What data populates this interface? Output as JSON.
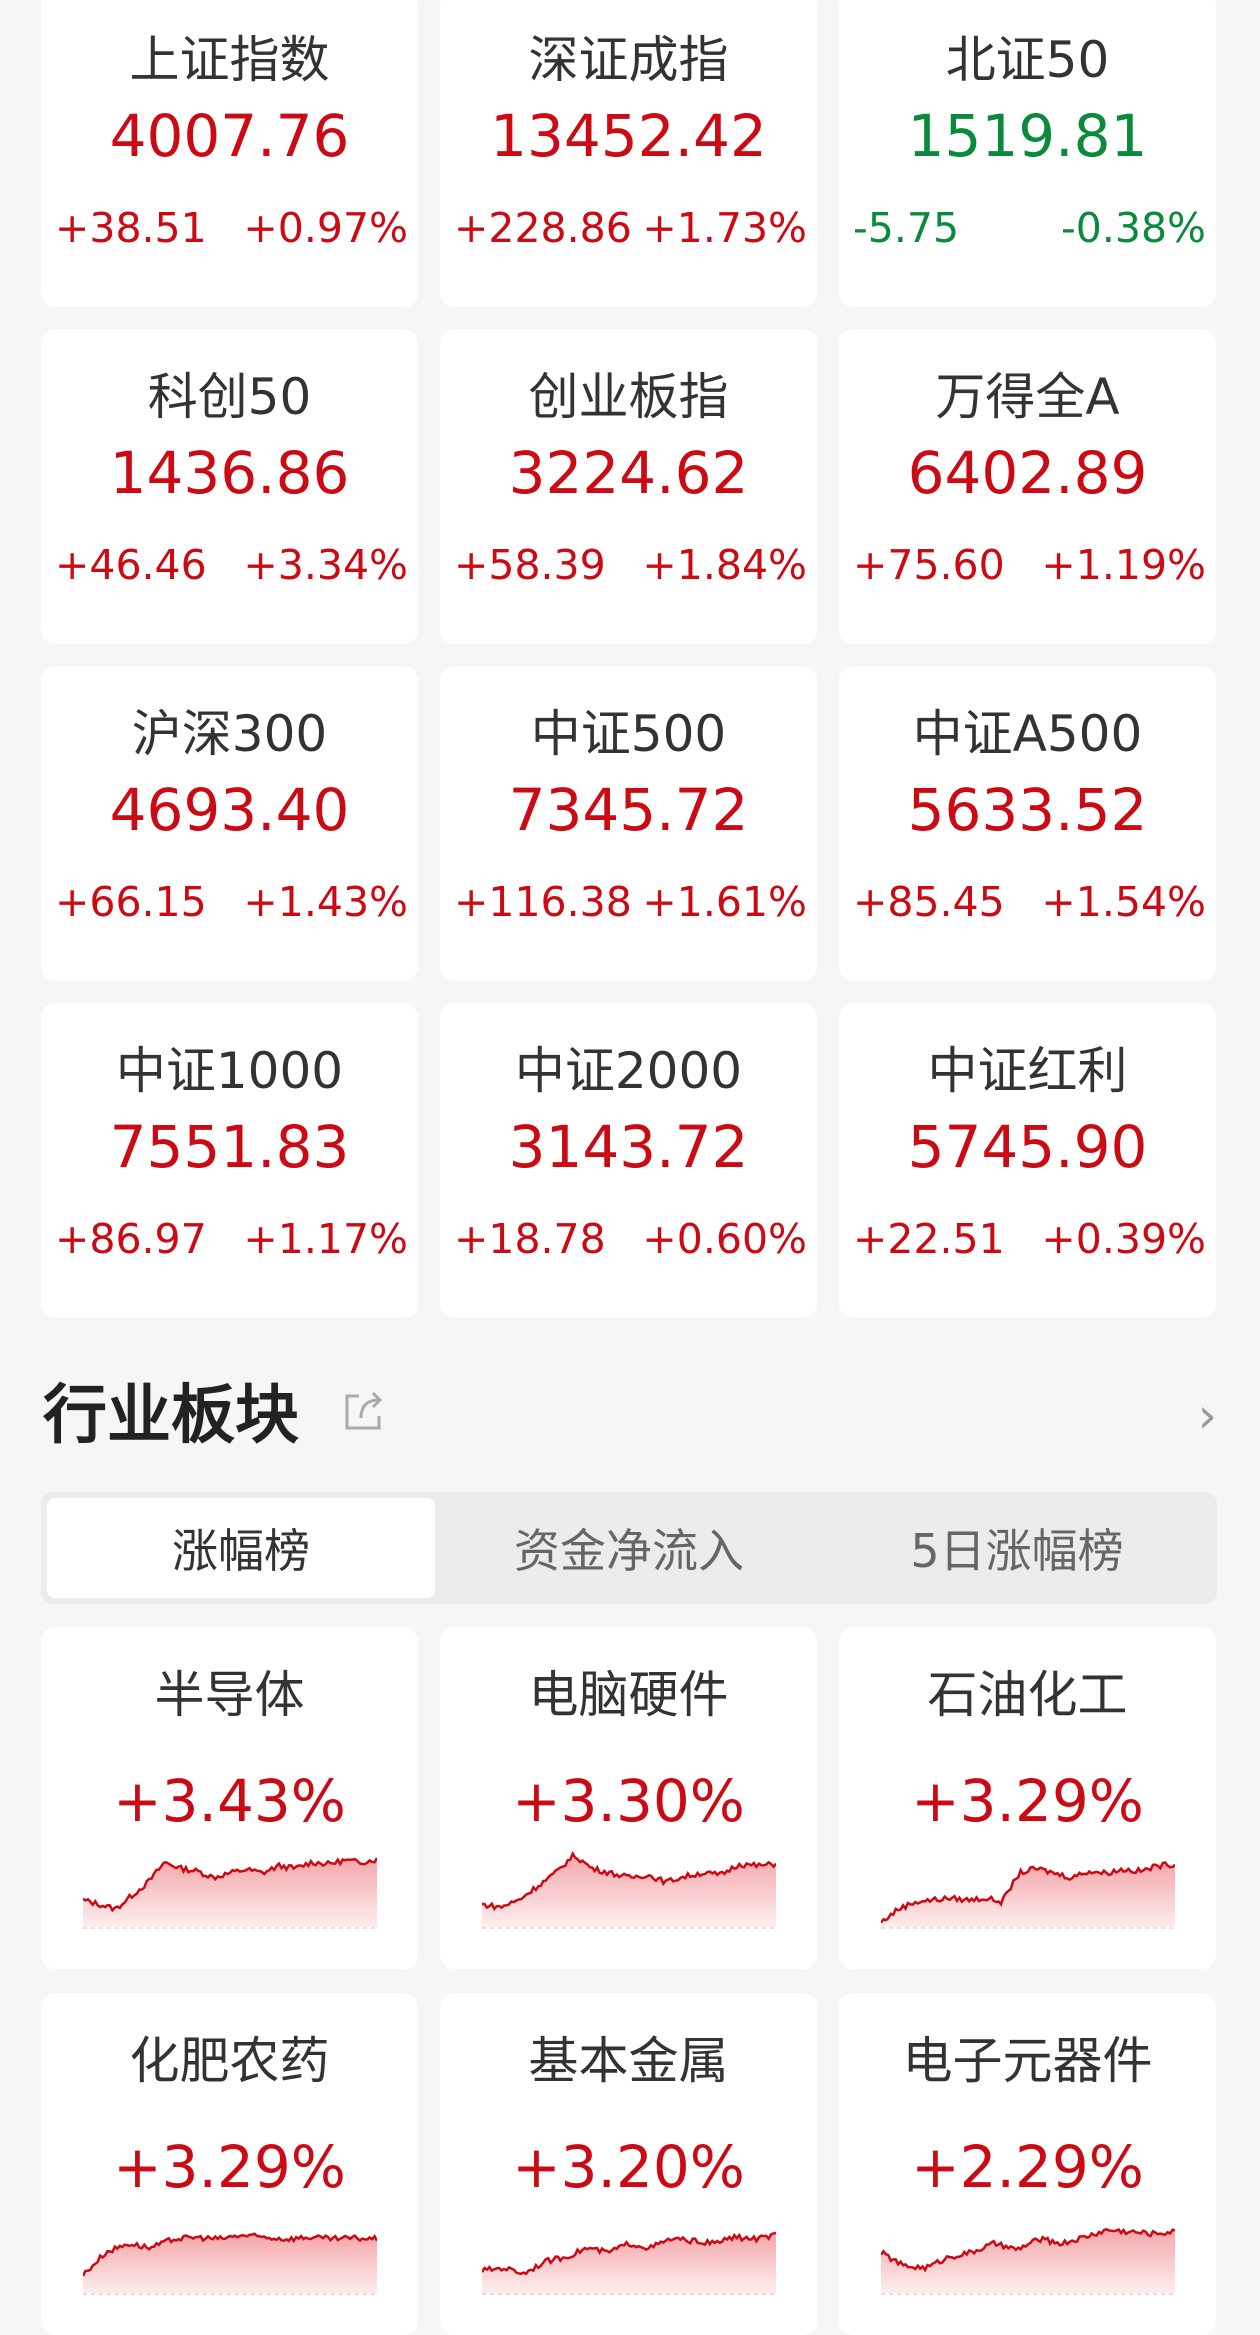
{
  "colors": {
    "up": "#cc0a14",
    "down": "#0a8a3a"
  },
  "indices": [
    {
      "name": "上证指数",
      "value": "4007.76",
      "change": "+38.51",
      "pct": "+0.97%",
      "dir": "up"
    },
    {
      "name": "深证成指",
      "value": "13452.42",
      "change": "+228.86",
      "pct": "+1.73%",
      "dir": "up"
    },
    {
      "name": "北证50",
      "value": "1519.81",
      "change": "-5.75",
      "pct": "-0.38%",
      "dir": "down"
    },
    {
      "name": "科创50",
      "value": "1436.86",
      "change": "+46.46",
      "pct": "+3.34%",
      "dir": "up"
    },
    {
      "name": "创业板指",
      "value": "3224.62",
      "change": "+58.39",
      "pct": "+1.84%",
      "dir": "up"
    },
    {
      "name": "万得全A",
      "value": "6402.89",
      "change": "+75.60",
      "pct": "+1.19%",
      "dir": "up"
    },
    {
      "name": "沪深300",
      "value": "4693.40",
      "change": "+66.15",
      "pct": "+1.43%",
      "dir": "up"
    },
    {
      "name": "中证500",
      "value": "7345.72",
      "change": "+116.38",
      "pct": "+1.61%",
      "dir": "up"
    },
    {
      "name": "中证A500",
      "value": "5633.52",
      "change": "+85.45",
      "pct": "+1.54%",
      "dir": "up"
    },
    {
      "name": "中证1000",
      "value": "7551.83",
      "change": "+86.97",
      "pct": "+1.17%",
      "dir": "up"
    },
    {
      "name": "中证2000",
      "value": "3143.72",
      "change": "+18.78",
      "pct": "+0.60%",
      "dir": "up"
    },
    {
      "name": "中证红利",
      "value": "5745.90",
      "change": "+22.51",
      "pct": "+0.39%",
      "dir": "up"
    }
  ],
  "sector": {
    "title": "行业板块",
    "share_icon": "share-icon",
    "more_icon": "chevron-right-icon",
    "tabs": [
      {
        "label": "涨幅榜",
        "active": true
      },
      {
        "label": "资金净流入",
        "active": false
      },
      {
        "label": "5日涨幅榜",
        "active": false
      }
    ],
    "items": [
      {
        "name": "半导体",
        "pct": "+3.43%",
        "trend": [
          0.3,
          0.25,
          0.2,
          0.35,
          0.5,
          0.72,
          0.65,
          0.62,
          0.55,
          0.6,
          0.64,
          0.6,
          0.68,
          0.65,
          0.72,
          0.7,
          0.74,
          0.72,
          0.75
        ]
      },
      {
        "name": "电脑硬件",
        "pct": "+3.30%",
        "trend": [
          0.25,
          0.22,
          0.3,
          0.45,
          0.6,
          0.8,
          0.65,
          0.6,
          0.55,
          0.58,
          0.5,
          0.56,
          0.6,
          0.58,
          0.7,
          0.68,
          0.7
        ]
      },
      {
        "name": "石油化工",
        "pct": "+3.29%",
        "trend": [
          0.05,
          0.2,
          0.28,
          0.3,
          0.32,
          0.3,
          0.32,
          0.28,
          0.6,
          0.65,
          0.6,
          0.55,
          0.62,
          0.6,
          0.64,
          0.62,
          0.68,
          0.7
        ]
      },
      {
        "name": "化肥农药",
        "pct": "+3.29%",
        "trend": [
          0.2,
          0.45,
          0.55,
          0.5,
          0.6,
          0.62,
          0.6,
          0.64,
          0.62,
          0.6,
          0.62,
          0.6,
          0.61,
          0.6
        ]
      },
      {
        "name": "基本金属",
        "pct": "+3.20%",
        "trend": [
          0.25,
          0.28,
          0.22,
          0.35,
          0.4,
          0.5,
          0.45,
          0.55,
          0.5,
          0.6,
          0.58,
          0.55,
          0.62,
          0.6,
          0.64
        ]
      },
      {
        "name": "电子元器件",
        "pct": "+2.29%",
        "trend": [
          0.45,
          0.3,
          0.28,
          0.4,
          0.45,
          0.55,
          0.48,
          0.6,
          0.55,
          0.62,
          0.7,
          0.68,
          0.66,
          0.68
        ]
      }
    ]
  }
}
